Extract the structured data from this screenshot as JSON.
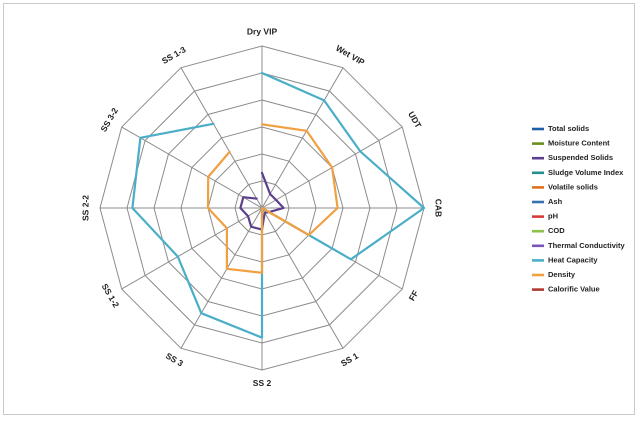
{
  "chart_data": {
    "type": "radar",
    "title": "",
    "grid": true,
    "legend_position": "right",
    "rlim": [
      0,
      6
    ],
    "ring_count": 6,
    "axes": [
      "Dry VIP",
      "Wet VIP",
      "UDT",
      "CAB",
      "FF",
      "SS 1",
      "SS 2",
      "SS 3",
      "SS 1-2",
      "SS 2-2",
      "SS 3-2",
      "SS 1-3"
    ],
    "series": [
      {
        "name": "Total solids",
        "color": "#1f5fa6",
        "values": []
      },
      {
        "name": "Moisture Content",
        "color": "#6b8e23",
        "values": []
      },
      {
        "name": "Suspended Solids",
        "color": "#5b3f8c",
        "values": [
          1.3,
          0.6,
          0.6,
          0.8,
          0.3,
          0.2,
          0.8,
          0.8,
          0.6,
          0.8,
          0.8,
          0.4
        ]
      },
      {
        "name": "Sludge Volume Index",
        "color": "#23908e",
        "values": []
      },
      {
        "name": "Volatile solids",
        "color": "#e0701f",
        "values": []
      },
      {
        "name": "Ash",
        "color": "#3a6fb0",
        "values": []
      },
      {
        "name": "pH",
        "color": "#d83a3a",
        "values": []
      },
      {
        "name": "COD",
        "color": "#8cc24a",
        "values": []
      },
      {
        "name": "Thermal Conductivity",
        "color": "#7a55b8",
        "values": []
      },
      {
        "name": "Heat Capacity",
        "color": "#4aaec8",
        "values": [
          5.0,
          4.6,
          4.2,
          6.0,
          3.8,
          0.0,
          4.8,
          4.5,
          3.6,
          4.8,
          5.2,
          3.6
        ]
      },
      {
        "name": "Density",
        "color": "#f0a040",
        "values": [
          3.1,
          3.3,
          3.0,
          2.8,
          2.0,
          0.0,
          2.4,
          2.6,
          1.5,
          2.0,
          2.3,
          2.4
        ]
      },
      {
        "name": "Calorific Value",
        "color": "#b03a2e",
        "values": []
      }
    ]
  }
}
